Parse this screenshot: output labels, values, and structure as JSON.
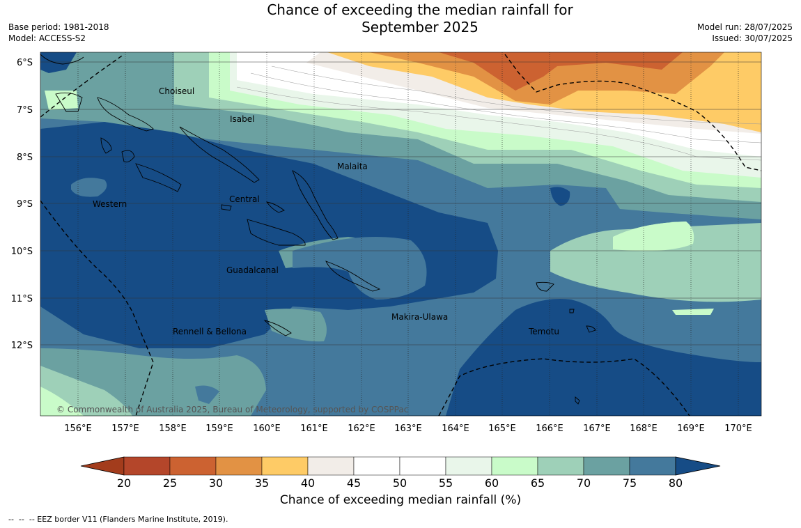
{
  "title": {
    "line1": "Chance of exceeding the median rainfall for",
    "line2": "September 2025"
  },
  "meta_left": {
    "base_period": "Base period: 1981-2018",
    "model": "Model: ACCESS-S2"
  },
  "meta_right": {
    "model_run": "Model run: 28/07/2025",
    "issued": "Issued: 30/07/2025"
  },
  "latitude_labels": [
    "6°S",
    "7°S",
    "8°S",
    "9°S",
    "10°S",
    "11°S",
    "12°S"
  ],
  "longitude_labels": [
    "156°E",
    "157°E",
    "158°E",
    "159°E",
    "160°E",
    "161°E",
    "162°E",
    "163°E",
    "164°E",
    "165°E",
    "166°E",
    "167°E",
    "168°E",
    "169°E",
    "170°E"
  ],
  "places": {
    "choiseul": "Choiseul",
    "isabel": "Isabel",
    "malaita": "Malaita",
    "western": "Western",
    "central": "Central",
    "guadalcanal": "Guadalcanal",
    "makira": "Makira-Ulawa",
    "rennell": "Rennell & Bellona",
    "temotu": "Temotu"
  },
  "copyright": "© Commonwealth of Australia 2025, Bureau of Meteorology, supported by COSPPac",
  "colorbar": {
    "title": "Chance of exceeding median rainfall (%)",
    "ticks": [
      "20",
      "25",
      "30",
      "35",
      "40",
      "45",
      "50",
      "55",
      "60",
      "65",
      "70",
      "75",
      "80"
    ],
    "colors": [
      "#a33c1c",
      "#b4462a",
      "#cc6231",
      "#e29244",
      "#fecb66",
      "#f2ede8",
      "#ffffff",
      "#ffffff",
      "#e9f6ea",
      "#c9fbc9",
      "#9ed0b8",
      "#6ba1a1",
      "#44799c",
      "#164c86"
    ]
  },
  "footnote": "--  --  -- EEZ border V11 (Flanders Marine Institute, 2019)."
}
